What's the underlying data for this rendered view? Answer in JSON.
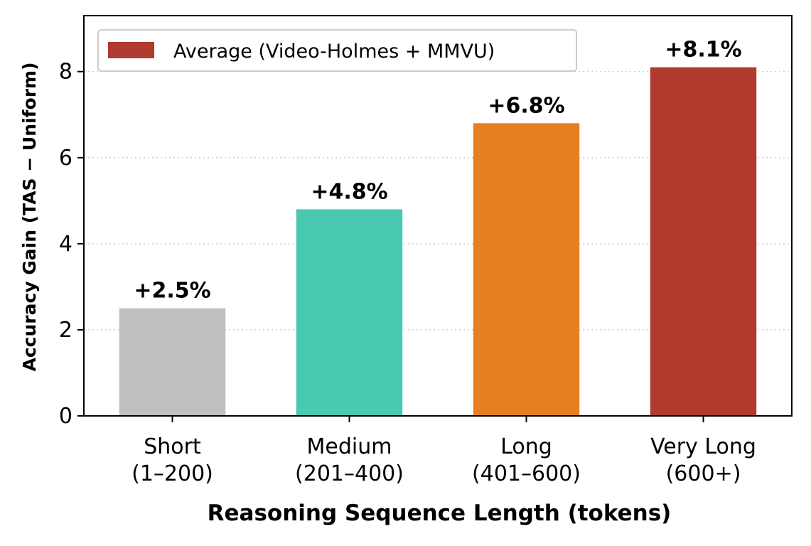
{
  "chart_data": {
    "type": "bar",
    "categories": [
      [
        "Short",
        "(1–200)"
      ],
      [
        "Medium",
        "(201–400)"
      ],
      [
        "Long",
        "(401–600)"
      ],
      [
        "Very Long",
        "(600+)"
      ]
    ],
    "values": [
      2.5,
      4.8,
      6.8,
      8.1
    ],
    "data_labels": [
      "+2.5%",
      "+4.8%",
      "+6.8%",
      "+8.1%"
    ],
    "colors": [
      "#bfbfbf",
      "#48c9b0",
      "#e67e22",
      "#b03a2e"
    ],
    "xlabel": "Reasoning Sequence Length (tokens)",
    "ylabel": "Accuracy Gain (TAS − Uniform)",
    "ylim": [
      0,
      9.3
    ],
    "yticks": [
      0,
      2,
      4,
      6,
      8
    ],
    "grid": "y-dotted",
    "legend": {
      "placement": "top-left",
      "entries": [
        {
          "label": "Average (Video-Holmes + MMVU)",
          "color": "#b03a2e"
        }
      ]
    }
  }
}
